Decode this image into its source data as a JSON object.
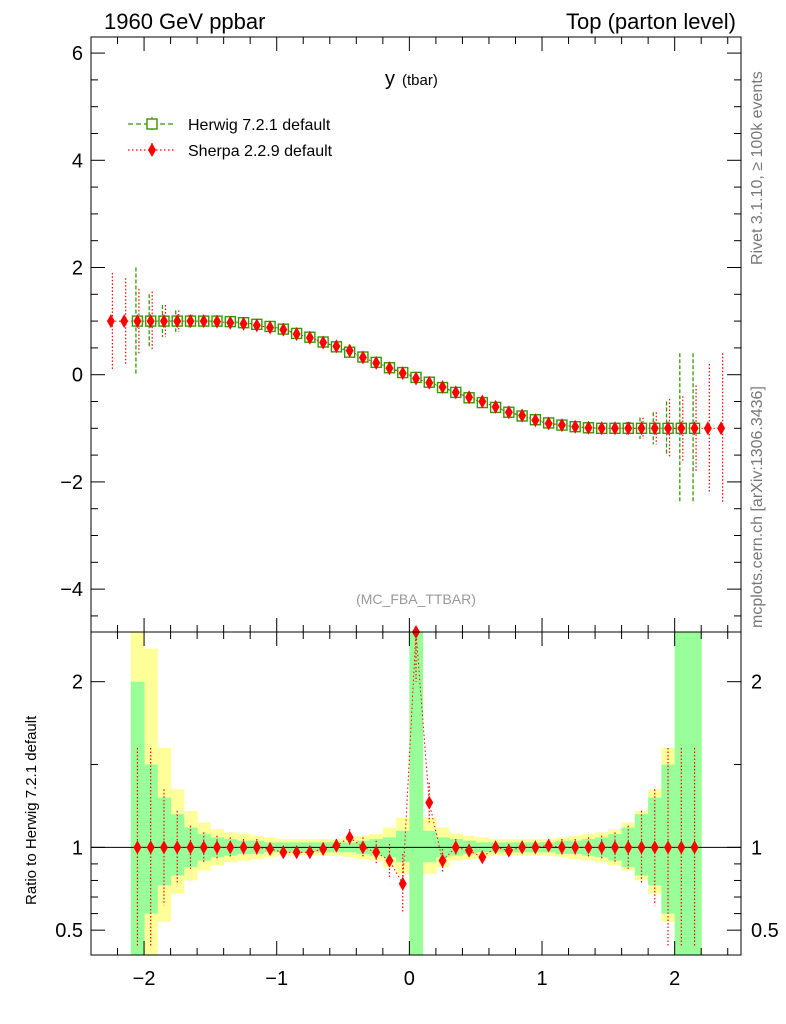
{
  "header": {
    "left_label": "1960 GeV ppbar",
    "right_label": "Top (parton level)"
  },
  "side_labels": {
    "rivet": "Rivet 3.1.10, ≥ 100k events",
    "mcplots": "mcplots.cern.ch [arXiv:1306.3436]"
  },
  "chart_data": [
    {
      "type": "scatter",
      "panel": "main",
      "title_main": "y",
      "title_sub": "(tbar)",
      "annotation": "(MC_FBA_TTBAR)",
      "xlabel": "",
      "ylabel": "",
      "xlim": [
        -2.4,
        2.5
      ],
      "ylim": [
        -4.8,
        6.3
      ],
      "xticks": [
        -2,
        -1,
        0,
        1,
        2
      ],
      "xtick_labels": [
        "−2",
        "−1",
        "0",
        "1",
        "2"
      ],
      "yticks": [
        -4,
        -2,
        0,
        2,
        4,
        6
      ],
      "ytick_labels": [
        "−4",
        "−2",
        "0",
        "2",
        "4",
        "6"
      ],
      "legend_position": "top-left",
      "series": [
        {
          "name": "Herwig 7.2.1 default",
          "color": "#339900",
          "marker": "open-square",
          "line": "dashed",
          "x": [
            -2.05,
            -1.95,
            -1.85,
            -1.75,
            -1.65,
            -1.55,
            -1.45,
            -1.35,
            -1.25,
            -1.15,
            -1.05,
            -0.95,
            -0.85,
            -0.75,
            -0.65,
            -0.55,
            -0.45,
            -0.35,
            -0.25,
            -0.15,
            -0.05,
            0.05,
            0.15,
            0.25,
            0.35,
            0.45,
            0.55,
            0.65,
            0.75,
            0.85,
            0.95,
            1.05,
            1.15,
            1.25,
            1.35,
            1.45,
            1.55,
            1.65,
            1.75,
            1.85,
            1.95,
            2.05,
            2.15
          ],
          "y": [
            1.0,
            1.0,
            1.0,
            1.0,
            1.0,
            1.0,
            1.0,
            0.99,
            0.97,
            0.94,
            0.9,
            0.85,
            0.77,
            0.7,
            0.61,
            0.52,
            0.42,
            0.33,
            0.23,
            0.13,
            0.04,
            -0.05,
            -0.14,
            -0.24,
            -0.33,
            -0.43,
            -0.52,
            -0.61,
            -0.7,
            -0.77,
            -0.84,
            -0.9,
            -0.94,
            -0.97,
            -0.99,
            -1.0,
            -1.0,
            -1.0,
            -1.0,
            -1.0,
            -1.0,
            -1.0,
            -1.0
          ],
          "err": [
            1.0,
            0.5,
            0.3,
            0.2,
            0.12,
            0.08,
            0.06,
            0.05,
            0.04,
            0.04,
            0.03,
            0.03,
            0.03,
            0.03,
            0.03,
            0.03,
            0.03,
            0.03,
            0.03,
            0.03,
            0.03,
            0.03,
            0.03,
            0.03,
            0.03,
            0.03,
            0.03,
            0.03,
            0.03,
            0.03,
            0.03,
            0.03,
            0.04,
            0.04,
            0.05,
            0.06,
            0.08,
            0.12,
            0.2,
            0.3,
            0.5,
            1.4,
            1.4
          ]
        },
        {
          "name": "Sherpa 2.2.9 default",
          "color": "#ff0000",
          "marker": "filled-diamond",
          "line": "dotted",
          "x": [
            -2.25,
            -2.15,
            -2.05,
            -1.95,
            -1.85,
            -1.75,
            -1.65,
            -1.55,
            -1.45,
            -1.35,
            -1.25,
            -1.15,
            -1.05,
            -0.95,
            -0.85,
            -0.75,
            -0.65,
            -0.55,
            -0.45,
            -0.35,
            -0.25,
            -0.15,
            -0.05,
            0.05,
            0.15,
            0.25,
            0.35,
            0.45,
            0.55,
            0.65,
            0.75,
            0.85,
            0.95,
            1.05,
            1.15,
            1.25,
            1.35,
            1.45,
            1.55,
            1.65,
            1.75,
            1.85,
            1.95,
            2.05,
            2.15,
            2.25,
            2.35
          ],
          "y": [
            1.0,
            1.0,
            1.0,
            1.0,
            1.0,
            1.0,
            1.0,
            1.0,
            0.99,
            0.97,
            0.95,
            0.92,
            0.88,
            0.84,
            0.76,
            0.69,
            0.6,
            0.53,
            0.45,
            0.32,
            0.22,
            0.12,
            0.03,
            -0.07,
            -0.15,
            -0.23,
            -0.33,
            -0.42,
            -0.5,
            -0.6,
            -0.7,
            -0.76,
            -0.85,
            -0.91,
            -0.94,
            -0.97,
            -0.99,
            -1.0,
            -1.0,
            -1.0,
            -1.0,
            -1.0,
            -1.0,
            -1.0,
            -1.0,
            -1.0,
            -1.0
          ],
          "err": [
            0.9,
            0.8,
            0.6,
            0.55,
            0.3,
            0.2,
            0.12,
            0.08,
            0.06,
            0.05,
            0.04,
            0.04,
            0.03,
            0.03,
            0.03,
            0.03,
            0.03,
            0.03,
            0.03,
            0.03,
            0.03,
            0.03,
            0.03,
            0.03,
            0.03,
            0.03,
            0.03,
            0.03,
            0.03,
            0.03,
            0.03,
            0.03,
            0.03,
            0.03,
            0.04,
            0.04,
            0.05,
            0.06,
            0.08,
            0.12,
            0.2,
            0.3,
            0.55,
            0.6,
            0.8,
            1.2,
            1.4
          ]
        }
      ]
    },
    {
      "type": "scatter",
      "panel": "ratio",
      "ylabel": "Ratio to Herwig 7.2.1 default",
      "xlim": [
        -2.4,
        2.5
      ],
      "ylim": [
        0.35,
        2.3
      ],
      "yticks": [
        0.5,
        1,
        2
      ],
      "ytick_labels": [
        "0.5",
        "1",
        "2"
      ],
      "bands": {
        "x_lo": [
          -2.1,
          -2.0,
          -1.9,
          -1.8,
          -1.7,
          -1.6,
          -1.5,
          -1.4,
          -1.3,
          -1.2,
          -1.1,
          -1.0,
          -0.9,
          -0.8,
          -0.7,
          -0.6,
          -0.5,
          -0.4,
          -0.3,
          -0.2,
          -0.1,
          0.0,
          0.1,
          0.2,
          0.3,
          0.4,
          0.5,
          0.6,
          0.7,
          0.8,
          0.9,
          1.0,
          1.1,
          1.2,
          1.3,
          1.4,
          1.5,
          1.6,
          1.7,
          1.8,
          1.9,
          2.0,
          2.1
        ],
        "inner_hi": [
          2.0,
          1.5,
          1.3,
          1.2,
          1.12,
          1.08,
          1.06,
          1.05,
          1.04,
          1.04,
          1.03,
          1.03,
          1.03,
          1.03,
          1.03,
          1.03,
          1.03,
          1.04,
          1.05,
          1.06,
          1.1,
          2.3,
          1.1,
          1.06,
          1.05,
          1.04,
          1.03,
          1.03,
          1.03,
          1.03,
          1.03,
          1.03,
          1.04,
          1.04,
          1.05,
          1.06,
          1.08,
          1.12,
          1.2,
          1.3,
          1.5,
          2.3,
          2.3
        ],
        "inner_lo": [
          0.0,
          0.6,
          0.77,
          0.83,
          0.88,
          0.92,
          0.94,
          0.95,
          0.96,
          0.96,
          0.97,
          0.97,
          0.97,
          0.97,
          0.97,
          0.97,
          0.97,
          0.96,
          0.95,
          0.94,
          0.91,
          0.0,
          0.91,
          0.94,
          0.95,
          0.96,
          0.97,
          0.97,
          0.97,
          0.97,
          0.97,
          0.97,
          0.96,
          0.96,
          0.95,
          0.94,
          0.92,
          0.88,
          0.83,
          0.77,
          0.6,
          0.0,
          0.0
        ],
        "outer_hi": [
          2.3,
          2.2,
          1.6,
          1.35,
          1.22,
          1.15,
          1.11,
          1.09,
          1.08,
          1.07,
          1.06,
          1.05,
          1.05,
          1.05,
          1.05,
          1.05,
          1.06,
          1.07,
          1.08,
          1.12,
          1.18,
          2.3,
          1.18,
          1.12,
          1.08,
          1.07,
          1.06,
          1.05,
          1.05,
          1.05,
          1.05,
          1.05,
          1.06,
          1.07,
          1.08,
          1.09,
          1.11,
          1.15,
          1.22,
          1.35,
          1.6,
          2.3,
          2.3
        ],
        "outer_lo": [
          0.0,
          0.0,
          0.55,
          0.72,
          0.8,
          0.86,
          0.89,
          0.91,
          0.92,
          0.93,
          0.94,
          0.95,
          0.95,
          0.95,
          0.95,
          0.95,
          0.94,
          0.93,
          0.92,
          0.88,
          0.84,
          0.0,
          0.84,
          0.88,
          0.92,
          0.93,
          0.94,
          0.95,
          0.95,
          0.95,
          0.95,
          0.95,
          0.94,
          0.93,
          0.92,
          0.91,
          0.89,
          0.86,
          0.8,
          0.72,
          0.55,
          0.0,
          0.0
        ]
      },
      "band_colors": {
        "inner": "#99ff99",
        "outer": "#ffff99"
      },
      "ratio_points": {
        "color": "#ff0000",
        "x": [
          -2.05,
          -1.95,
          -1.85,
          -1.75,
          -1.65,
          -1.55,
          -1.45,
          -1.35,
          -1.25,
          -1.15,
          -1.05,
          -0.95,
          -0.85,
          -0.75,
          -0.65,
          -0.55,
          -0.45,
          -0.35,
          -0.25,
          -0.15,
          -0.05,
          0.05,
          0.15,
          0.25,
          0.35,
          0.45,
          0.55,
          0.65,
          0.75,
          0.85,
          0.95,
          1.05,
          1.15,
          1.25,
          1.35,
          1.45,
          1.55,
          1.65,
          1.75,
          1.85,
          1.95,
          2.05,
          2.15
        ],
        "y": [
          1.0,
          1.0,
          1.0,
          1.0,
          1.0,
          1.0,
          1.0,
          1.0,
          1.0,
          1.0,
          0.99,
          0.97,
          0.97,
          0.97,
          0.99,
          1.01,
          1.06,
          1.0,
          0.97,
          0.92,
          0.78,
          2.3,
          1.27,
          0.92,
          1.0,
          0.98,
          0.94,
          1.0,
          0.98,
          1.0,
          1.0,
          1.01,
          1.0,
          1.0,
          1.0,
          1.0,
          1.0,
          1.0,
          1.0,
          1.0,
          1.0,
          1.0,
          1.0
        ],
        "err": [
          0.6,
          0.6,
          0.35,
          0.22,
          0.13,
          0.09,
          0.07,
          0.06,
          0.05,
          0.05,
          0.04,
          0.04,
          0.04,
          0.04,
          0.04,
          0.04,
          0.05,
          0.06,
          0.07,
          0.1,
          0.18,
          0.3,
          0.12,
          0.07,
          0.05,
          0.04,
          0.04,
          0.04,
          0.04,
          0.04,
          0.04,
          0.04,
          0.05,
          0.05,
          0.06,
          0.07,
          0.09,
          0.13,
          0.22,
          0.35,
          0.6,
          0.6,
          0.6
        ]
      }
    }
  ]
}
